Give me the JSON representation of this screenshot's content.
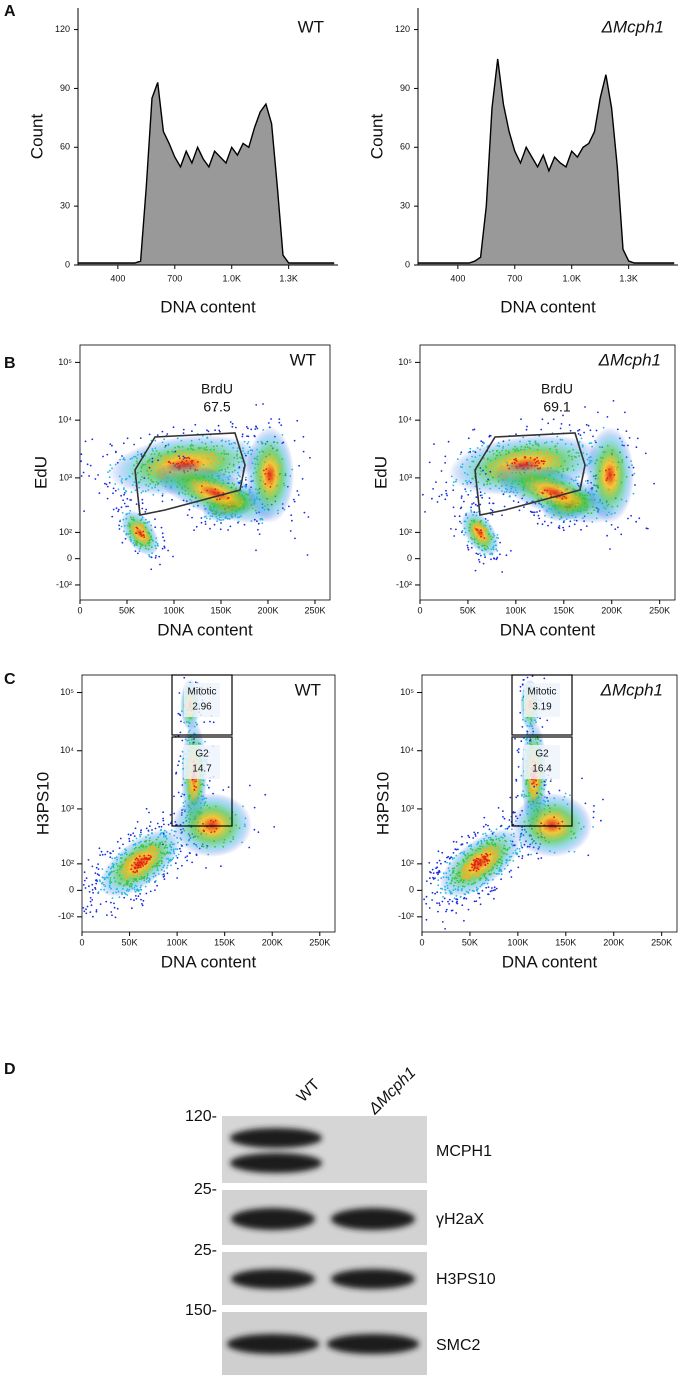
{
  "panel_labels": [
    "A",
    "B",
    "C",
    "D"
  ],
  "chart_data": [
    {
      "type": "area",
      "title": "WT",
      "x_label": "DNA content",
      "y_label": "Count",
      "color": "#999999",
      "x": [
        190,
        220,
        250,
        280,
        310,
        340,
        370,
        400,
        430,
        460,
        490,
        520,
        550,
        580,
        610,
        640,
        670,
        700,
        730,
        760,
        790,
        820,
        850,
        880,
        910,
        940,
        970,
        1000,
        1030,
        1060,
        1090,
        1120,
        1150,
        1180,
        1210,
        1240,
        1270,
        1300,
        1330,
        1360,
        1390,
        1420,
        1450,
        1480,
        1510,
        1540
      ],
      "values": [
        1,
        1,
        1,
        1,
        1,
        1,
        1,
        1,
        1,
        1,
        1,
        2,
        40,
        85,
        93,
        68,
        62,
        55,
        50,
        58,
        52,
        60,
        54,
        50,
        58,
        55,
        52,
        60,
        56,
        62,
        60,
        70,
        78,
        82,
        72,
        40,
        5,
        1,
        1,
        1,
        1,
        1,
        1,
        1,
        1,
        1
      ],
      "xlim": [
        190,
        1560
      ],
      "xticks": [
        400,
        700,
        {
          "value": 1000,
          "label": "1.0K"
        },
        {
          "value": 1300,
          "label": "1.3K"
        }
      ],
      "ylim": [
        0,
        131
      ],
      "yticks": [
        0,
        30,
        60,
        90,
        120
      ]
    },
    {
      "type": "area",
      "title": "ΔMcph1",
      "x_label": "DNA content",
      "y_label": "Count",
      "color": "#999999",
      "x": [
        190,
        220,
        250,
        280,
        310,
        340,
        370,
        400,
        430,
        460,
        490,
        520,
        550,
        580,
        610,
        640,
        670,
        700,
        730,
        760,
        790,
        820,
        850,
        880,
        910,
        940,
        970,
        1000,
        1030,
        1060,
        1090,
        1120,
        1150,
        1180,
        1210,
        1240,
        1270,
        1300,
        1330,
        1360,
        1390,
        1420,
        1450,
        1480,
        1510,
        1540
      ],
      "values": [
        1,
        1,
        1,
        1,
        1,
        1,
        1,
        1,
        1,
        1,
        2,
        4,
        30,
        80,
        105,
        82,
        68,
        58,
        52,
        60,
        55,
        50,
        56,
        48,
        55,
        52,
        50,
        58,
        55,
        60,
        62,
        68,
        85,
        97,
        80,
        50,
        8,
        2,
        1,
        1,
        1,
        1,
        1,
        1,
        1,
        1
      ],
      "xlim": [
        190,
        1560
      ],
      "xticks": [
        400,
        700,
        {
          "value": 1000,
          "label": "1.0K"
        },
        {
          "value": 1300,
          "label": "1.3K"
        }
      ],
      "ylim": [
        0,
        131
      ],
      "yticks": [
        0,
        30,
        60,
        90,
        120
      ]
    },
    {
      "type": "density",
      "title": "WT",
      "x_label": "DNA content",
      "y_label": "EdU",
      "y_scale": "biexponential",
      "gates": [
        {
          "name": "BrdU",
          "percent": 67.5
        }
      ],
      "xlim": [
        0,
        266000
      ],
      "xticks": [
        0,
        {
          "value": 50000,
          "label": "50K"
        },
        {
          "value": 100000,
          "label": "100K"
        },
        {
          "value": 150000,
          "label": "150K"
        },
        {
          "value": 200000,
          "label": "200K"
        },
        {
          "value": 250000,
          "label": "250K"
        }
      ],
      "ylim": [
        -200,
        200000
      ],
      "yticks": [
        {
          "value": 100000,
          "label": "10⁵"
        },
        {
          "value": 10000,
          "label": "10⁴"
        },
        {
          "value": 1000,
          "label": "10³"
        },
        {
          "value": 100,
          "label": "10²"
        },
        0,
        {
          "value": -100,
          "label": "-10²"
        }
      ]
    },
    {
      "type": "density",
      "title": "ΔMcph1",
      "x_label": "DNA content",
      "y_label": "EdU",
      "y_scale": "biexponential",
      "gates": [
        {
          "name": "BrdU",
          "percent": 69.1
        }
      ],
      "xlim": [
        0,
        266000
      ],
      "xticks": [
        0,
        {
          "value": 50000,
          "label": "50K"
        },
        {
          "value": 100000,
          "label": "100K"
        },
        {
          "value": 150000,
          "label": "150K"
        },
        {
          "value": 200000,
          "label": "200K"
        },
        {
          "value": 250000,
          "label": "250K"
        }
      ],
      "ylim": [
        -200,
        200000
      ],
      "yticks": [
        {
          "value": 100000,
          "label": "10⁵"
        },
        {
          "value": 10000,
          "label": "10⁴"
        },
        {
          "value": 1000,
          "label": "10³"
        },
        {
          "value": 100,
          "label": "10²"
        },
        0,
        {
          "value": -100,
          "label": "-10²"
        }
      ]
    },
    {
      "type": "density",
      "title": "WT",
      "x_label": "DNA content",
      "y_label": "H3PS10",
      "y_scale": "biexponential",
      "gates": [
        {
          "name": "Mitotic",
          "percent": 2.96
        },
        {
          "name": "G2",
          "percent": 14.7
        }
      ],
      "xlim": [
        0,
        266000
      ],
      "xticks": [
        0,
        {
          "value": 50000,
          "label": "50K"
        },
        {
          "value": 100000,
          "label": "100K"
        },
        {
          "value": 150000,
          "label": "150K"
        },
        {
          "value": 200000,
          "label": "200K"
        },
        {
          "value": 250000,
          "label": "250K"
        }
      ],
      "ylim": [
        -200,
        200000
      ],
      "yticks": [
        {
          "value": 100000,
          "label": "10⁵"
        },
        {
          "value": 10000,
          "label": "10⁴"
        },
        {
          "value": 1000,
          "label": "10³"
        },
        {
          "value": 100,
          "label": "10²"
        },
        0,
        {
          "value": -100,
          "label": "-10²"
        }
      ]
    },
    {
      "type": "density",
      "title": "ΔMcph1",
      "x_label": "DNA content",
      "y_label": "H3PS10",
      "y_scale": "biexponential",
      "gates": [
        {
          "name": "Mitotic",
          "percent": 3.19
        },
        {
          "name": "G2",
          "percent": 16.4
        }
      ],
      "xlim": [
        0,
        266000
      ],
      "xticks": [
        0,
        {
          "value": 50000,
          "label": "50K"
        },
        {
          "value": 100000,
          "label": "100K"
        },
        {
          "value": 150000,
          "label": "150K"
        },
        {
          "value": 200000,
          "label": "200K"
        },
        {
          "value": 250000,
          "label": "250K"
        }
      ],
      "ylim": [
        -200,
        200000
      ],
      "yticks": [
        {
          "value": 100000,
          "label": "10⁵"
        },
        {
          "value": 10000,
          "label": "10⁴"
        },
        {
          "value": 1000,
          "label": "10³"
        },
        {
          "value": 100,
          "label": "10²"
        },
        0,
        {
          "value": -100,
          "label": "-10²"
        }
      ]
    }
  ],
  "blot": {
    "lanes": [
      "WT",
      "ΔMcph1"
    ],
    "rows": [
      {
        "marker": "120-",
        "protein": "MCPH1"
      },
      {
        "marker": "25-",
        "protein": "γH2aX"
      },
      {
        "marker": "25-",
        "protein": "H3PS10"
      },
      {
        "marker": "150-",
        "protein": "SMC2"
      }
    ]
  }
}
